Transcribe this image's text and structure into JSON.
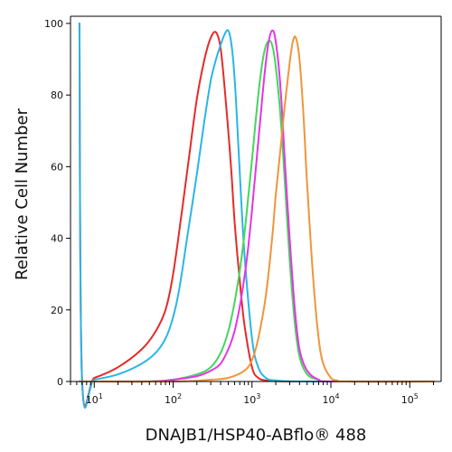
{
  "chart_data": {
    "type": "line",
    "title": "",
    "xlabel": "DNAJB1/HSP40-ABflo® 488",
    "ylabel": "Relative Cell Number",
    "x_scale": "log",
    "xlim": [
      5,
      250000
    ],
    "ylim": [
      0,
      102
    ],
    "grid": false,
    "legend": "none",
    "y_ticks": [
      0,
      20,
      40,
      60,
      80,
      100
    ],
    "y_tick_labels": [
      "0",
      "20",
      "40",
      "60",
      "80",
      "100"
    ],
    "x_ticks": [
      10,
      100,
      1000,
      10000,
      100000
    ],
    "x_tick_labels": [
      {
        "base": "10",
        "exp": "1"
      },
      {
        "base": "10",
        "exp": "2"
      },
      {
        "base": "10",
        "exp": "3"
      },
      {
        "base": "10",
        "exp": "4"
      },
      {
        "base": "10",
        "exp": "5"
      }
    ],
    "series": [
      {
        "color": "#e32b2b",
        "x": [
          6.5,
          7,
          10,
          20,
          40,
          60,
          80,
          100,
          130,
          160,
          200,
          250,
          300,
          350,
          400,
          450,
          500,
          550,
          600,
          700,
          800,
          1000,
          1200,
          1500,
          2000,
          5000,
          200000
        ],
        "y": [
          100,
          0.5,
          1,
          4,
          9,
          14,
          20,
          30,
          48,
          63,
          79,
          90,
          96,
          97.5,
          93,
          82,
          70,
          58,
          45,
          28,
          16,
          4,
          1,
          0.3,
          0.1,
          0,
          0
        ]
      },
      {
        "color": "#29b6e6",
        "x": [
          6.5,
          7,
          10,
          20,
          40,
          60,
          80,
          100,
          120,
          150,
          200,
          250,
          300,
          350,
          400,
          450,
          500,
          550,
          600,
          650,
          700,
          800,
          1000,
          1200,
          1500,
          2000,
          5000,
          200000
        ],
        "y": [
          100,
          0,
          0.5,
          2,
          5,
          8,
          12,
          18,
          26,
          40,
          58,
          73,
          84,
          90,
          94,
          97,
          98,
          94,
          85,
          72,
          58,
          36,
          12,
          4,
          1,
          0.3,
          0,
          0
        ]
      },
      {
        "color": "#44d65c",
        "x": [
          6.5,
          50,
          100,
          200,
          300,
          400,
          500,
          600,
          700,
          800,
          900,
          1000,
          1200,
          1400,
          1600,
          1800,
          2000,
          2300,
          2600,
          3000,
          3500,
          4000,
          5000,
          7000,
          10000,
          200000
        ],
        "y": [
          0,
          0,
          0.5,
          2,
          4,
          8,
          14,
          22,
          31,
          41,
          52,
          62,
          80,
          91,
          95,
          94,
          88,
          74,
          56,
          34,
          16,
          7,
          2,
          0.5,
          0,
          0
        ]
      },
      {
        "color": "#e535e5",
        "x": [
          6.5,
          50,
          100,
          200,
          300,
          400,
          500,
          600,
          700,
          800,
          900,
          1000,
          1200,
          1400,
          1600,
          1800,
          2000,
          2300,
          2600,
          3000,
          3500,
          4000,
          5000,
          7000,
          10000,
          200000
        ],
        "y": [
          0,
          0,
          0.5,
          1.5,
          3,
          5,
          9,
          14,
          21,
          29,
          38,
          48,
          67,
          83,
          94,
          98,
          95,
          82,
          62,
          40,
          20,
          9,
          3,
          0.5,
          0,
          0
        ]
      },
      {
        "color": "#f0953a",
        "x": [
          6.5,
          100,
          300,
          500,
          800,
          1000,
          1200,
          1500,
          1800,
          2000,
          2300,
          2600,
          3000,
          3300,
          3600,
          4000,
          4500,
          5000,
          6000,
          7000,
          8000,
          10000,
          12000,
          15000,
          200000
        ],
        "y": [
          0,
          0,
          0.5,
          1,
          3,
          6,
          12,
          24,
          40,
          52,
          65,
          77,
          89,
          95,
          96,
          90,
          74,
          55,
          28,
          12,
          5,
          1,
          0.3,
          0,
          0
        ]
      }
    ]
  }
}
